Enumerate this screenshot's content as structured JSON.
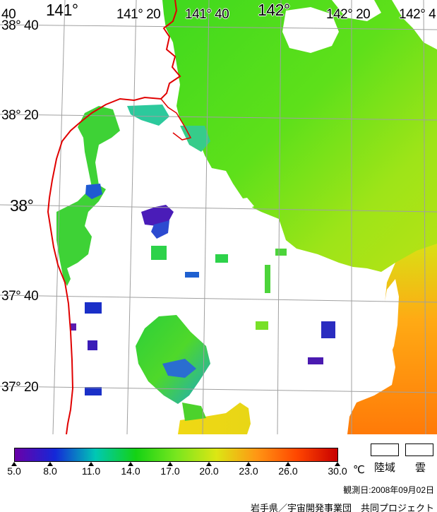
{
  "map": {
    "longitude_labels": [
      "141°",
      "141° 20",
      "141° 40",
      "142°",
      "142° 20",
      "142° 4"
    ],
    "latitude_labels": [
      "38° 40",
      "38° 20",
      "38°",
      "37° 40",
      "37° 20"
    ],
    "corner_label": "40",
    "colors": {
      "coastline": "#e00000",
      "grid": "#a0a0a0",
      "land_and_cloud": "#ffffff"
    }
  },
  "legend": {
    "colorbar_stops": [
      "#6a00a8",
      "#1428d8",
      "#00c8b4",
      "#14d214",
      "#78e61e",
      "#dce614",
      "#ff9614",
      "#ff4600",
      "#c80000"
    ],
    "scale_labels": [
      "5.0",
      "8.0",
      "11.0",
      "14.0",
      "17.0",
      "20.0",
      "23.0",
      "26.0",
      "30.0"
    ],
    "unit": "℃",
    "land_label": "陸域",
    "cloud_label": "雲"
  },
  "observation_date": "観測日:2008年09月02日",
  "credit": "岩手県／宇宙開発事業団　共同プロジェクト"
}
